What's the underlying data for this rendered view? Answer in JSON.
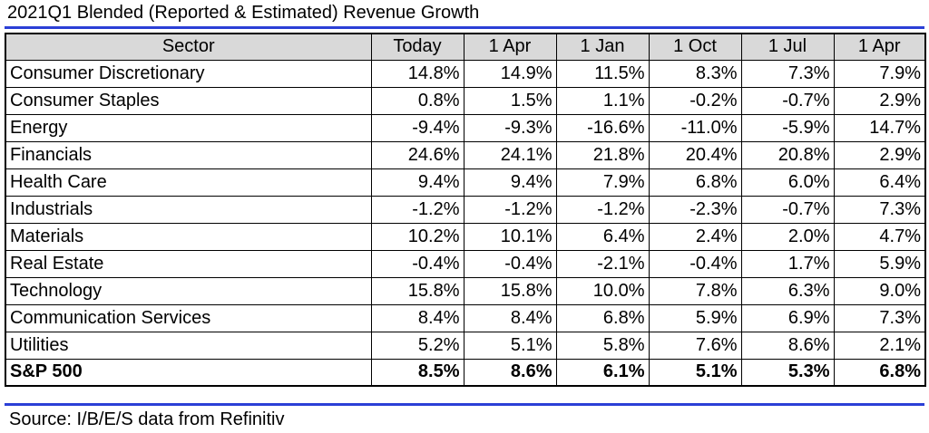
{
  "title": "2021Q1 Blended (Reported & Estimated) Revenue Growth",
  "source": "Source: I/B/E/S data from Refinitiv",
  "colors": {
    "rule": "#2b3fd6",
    "header_bg": "#d9d9d9",
    "border": "#000000"
  },
  "chart_data": {
    "type": "table",
    "title": "2021Q1 Blended (Reported & Estimated) Revenue Growth",
    "columns": [
      "Sector",
      "Today",
      "1 Apr",
      "1 Jan",
      "1 Oct",
      "1 Jul",
      "1 Apr"
    ],
    "rows": [
      {
        "sector": "Consumer Discretionary",
        "values": [
          "14.8%",
          "14.9%",
          "11.5%",
          "8.3%",
          "7.3%",
          "7.9%"
        ]
      },
      {
        "sector": "Consumer Staples",
        "values": [
          "0.8%",
          "1.5%",
          "1.1%",
          "-0.2%",
          "-0.7%",
          "2.9%"
        ]
      },
      {
        "sector": "Energy",
        "values": [
          "-9.4%",
          "-9.3%",
          "-16.6%",
          "-11.0%",
          "-5.9%",
          "14.7%"
        ]
      },
      {
        "sector": "Financials",
        "values": [
          "24.6%",
          "24.1%",
          "21.8%",
          "20.4%",
          "20.8%",
          "2.9%"
        ]
      },
      {
        "sector": "Health Care",
        "values": [
          "9.4%",
          "9.4%",
          "7.9%",
          "6.8%",
          "6.0%",
          "6.4%"
        ]
      },
      {
        "sector": "Industrials",
        "values": [
          "-1.2%",
          "-1.2%",
          "-1.2%",
          "-2.3%",
          "-0.7%",
          "7.3%"
        ]
      },
      {
        "sector": "Materials",
        "values": [
          "10.2%",
          "10.1%",
          "6.4%",
          "2.4%",
          "2.0%",
          "4.7%"
        ]
      },
      {
        "sector": "Real Estate",
        "values": [
          "-0.4%",
          "-0.4%",
          "-2.1%",
          "-0.4%",
          "1.7%",
          "5.9%"
        ]
      },
      {
        "sector": "Technology",
        "values": [
          "15.8%",
          "15.8%",
          "10.0%",
          "7.8%",
          "6.3%",
          "9.0%"
        ]
      },
      {
        "sector": "Communication Services",
        "values": [
          "8.4%",
          "8.4%",
          "6.8%",
          "5.9%",
          "6.9%",
          "7.3%"
        ]
      },
      {
        "sector": "Utilities",
        "values": [
          "5.2%",
          "5.1%",
          "5.8%",
          "7.6%",
          "8.6%",
          "2.1%"
        ]
      }
    ],
    "total": {
      "sector": "S&P 500",
      "values": [
        "8.5%",
        "8.6%",
        "6.1%",
        "5.1%",
        "5.3%",
        "6.8%"
      ]
    }
  }
}
